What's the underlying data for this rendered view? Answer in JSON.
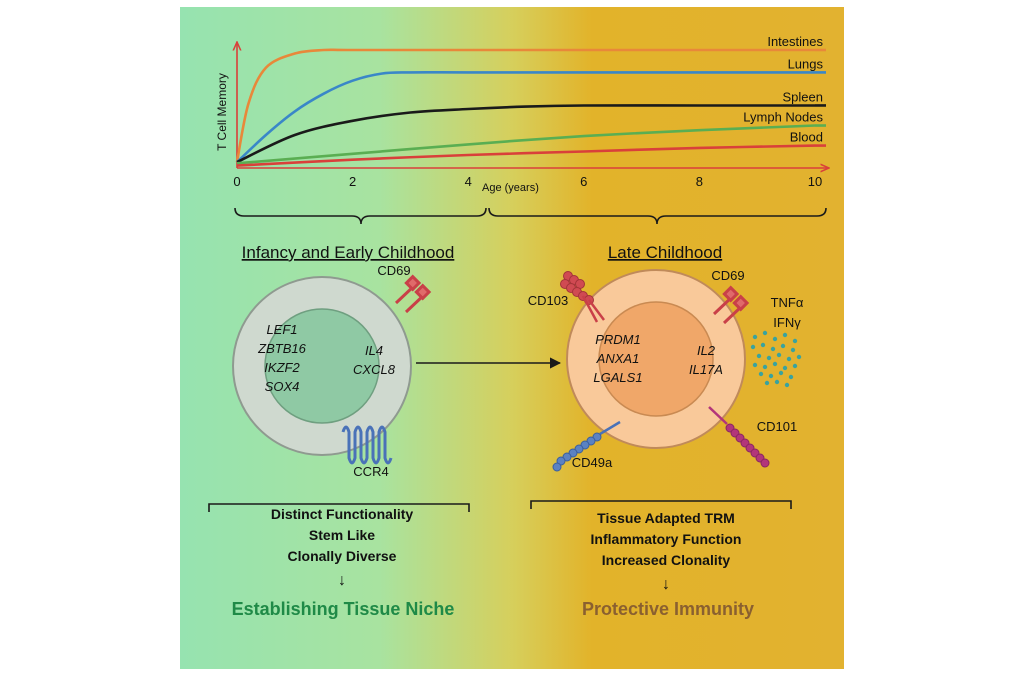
{
  "chart_data": {
    "type": "line",
    "title": "",
    "xlabel": "Age (years)",
    "ylabel": "T Cell Memory",
    "xlim": [
      0,
      10
    ],
    "ylim": [
      0,
      1
    ],
    "x_ticks": [
      "0",
      "2",
      "4",
      "6",
      "8",
      "10"
    ],
    "grid": false,
    "series": [
      {
        "name": "Intestines",
        "color": "#e8883a",
        "x": [
          0,
          0.2,
          0.5,
          1.0,
          1.5,
          2,
          4,
          6,
          8,
          10
        ],
        "values": [
          0.05,
          0.55,
          0.85,
          0.97,
          1.0,
          1.0,
          1.0,
          1.0,
          1.0,
          1.0
        ]
      },
      {
        "name": "Lungs",
        "color": "#3a87c8",
        "x": [
          0,
          0.5,
          1,
          1.5,
          2,
          2.5,
          3,
          4,
          6,
          8,
          10
        ],
        "values": [
          0.05,
          0.28,
          0.48,
          0.63,
          0.74,
          0.8,
          0.81,
          0.81,
          0.81,
          0.81,
          0.81
        ]
      },
      {
        "name": "Spleen",
        "color": "#1a1a1a",
        "x": [
          0,
          1,
          2,
          3,
          4,
          5,
          6,
          8,
          10
        ],
        "values": [
          0.05,
          0.28,
          0.4,
          0.47,
          0.5,
          0.52,
          0.53,
          0.53,
          0.53
        ]
      },
      {
        "name": "Lymph Nodes",
        "color": "#5aae52",
        "x": [
          0,
          2,
          4,
          6,
          8,
          10
        ],
        "values": [
          0.04,
          0.12,
          0.2,
          0.27,
          0.32,
          0.36
        ]
      },
      {
        "name": "Blood",
        "color": "#d9403a",
        "x": [
          0,
          2,
          4,
          6,
          8,
          10
        ],
        "values": [
          0.02,
          0.07,
          0.11,
          0.14,
          0.17,
          0.19
        ]
      }
    ]
  },
  "colors": {
    "left_bg": "#96e3b0",
    "right_bg": "#e2b32a",
    "infancy_title": "#1f8a47",
    "late_title": "#8a6030",
    "receptor": "#c94048",
    "ccr4": "#4a72b8",
    "cd49a": "#4a72b8",
    "cd101": "#b3357a",
    "cytokine_dots": "#3aa39e"
  },
  "left_panel": {
    "title": "Infancy and Early Childhood",
    "receptor_top": "CD69",
    "receptor_bottom": "CCR4",
    "genes_left": [
      "LEF1",
      "ZBTB16",
      "IKZF2",
      "SOX4"
    ],
    "genes_right": [
      "IL4",
      "CXCL8"
    ],
    "traits": [
      "Distinct Functionality",
      "Stem Like",
      "Clonally Diverse"
    ],
    "arrow": "↓",
    "outcome": "Establishing Tissue Niche"
  },
  "right_panel": {
    "title": "Late Childhood",
    "receptor_cd103": "CD103",
    "receptor_cd69": "CD69",
    "receptor_cd101": "CD101",
    "receptor_cd49a": "CD49a",
    "cytokines": [
      "TNFα",
      "IFNγ"
    ],
    "genes_left": [
      "PRDM1",
      "ANXA1",
      "LGALS1"
    ],
    "genes_right": [
      "IL2",
      "IL17A"
    ],
    "traits": [
      "Tissue Adapted TRM",
      "Inflammatory Function",
      "Increased Clonality"
    ],
    "arrow": "↓",
    "outcome": "Protective Immunity"
  }
}
